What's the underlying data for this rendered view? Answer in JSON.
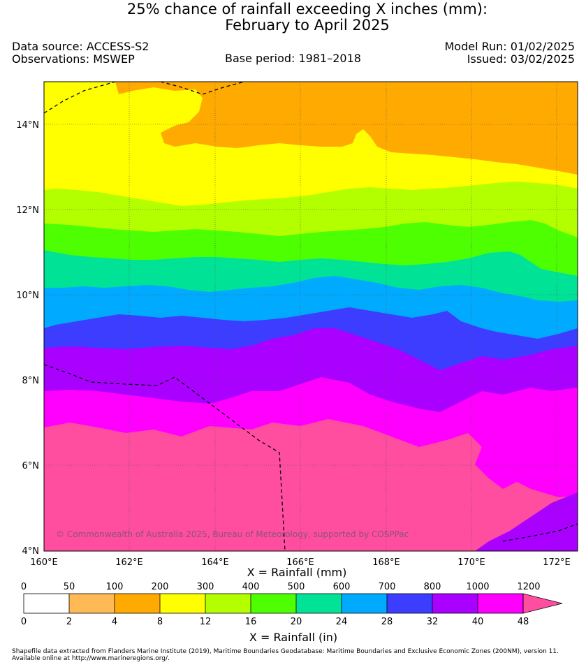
{
  "header": {
    "title_line1": "25% chance of rainfall exceeding X inches (mm):",
    "title_line2": "February to April 2025",
    "data_source": "Data source: ACCESS-S2",
    "observations": "Observations: MSWEP",
    "base_period": "Base period: 1981–2018",
    "model_run": "Model Run: 01/02/2025",
    "issued": "Issued: 03/02/2025"
  },
  "map": {
    "lat_labels": [
      "14°N",
      "12°N",
      "10°N",
      "8°N",
      "6°N",
      "4°N"
    ],
    "lon_labels": [
      "160°E",
      "162°E",
      "164°E",
      "166°E",
      "168°E",
      "170°E",
      "172°E"
    ],
    "copyright": "© Commonwealth of Australia 2025, Bureau of Meteorology, supported by COSPPac",
    "extent": {
      "lon": [
        160,
        172.5
      ],
      "lat": [
        4,
        15
      ]
    }
  },
  "axis": {
    "x_title": "X = Rainfall (mm)",
    "colorbar_title": "X = Rainfall (in)"
  },
  "colorbar": {
    "mm_labels": [
      "0",
      "50",
      "100",
      "200",
      "300",
      "400",
      "500",
      "600",
      "700",
      "800",
      "1000",
      "1200"
    ],
    "in_labels": [
      "0",
      "2",
      "4",
      "8",
      "12",
      "16",
      "20",
      "24",
      "28",
      "32",
      "40",
      "48"
    ],
    "colors": [
      "#ffffff",
      "#ffb955",
      "#ffaa00",
      "#ffff00",
      "#b3ff00",
      "#4dff00",
      "#00e396",
      "#00aaff",
      "#3d3dff",
      "#aa00ff",
      "#ff00ff",
      "#ff4d9f"
    ]
  },
  "footer": {
    "line1": "Shapefile data extracted from Flanders Marine Institute (2019), Maritime Boundaries Geodatabase: Maritime Boundaries and Exclusive Economic Zones (200NM), version 11.",
    "line2": "Available online at http://www.marineregions.org/."
  }
}
